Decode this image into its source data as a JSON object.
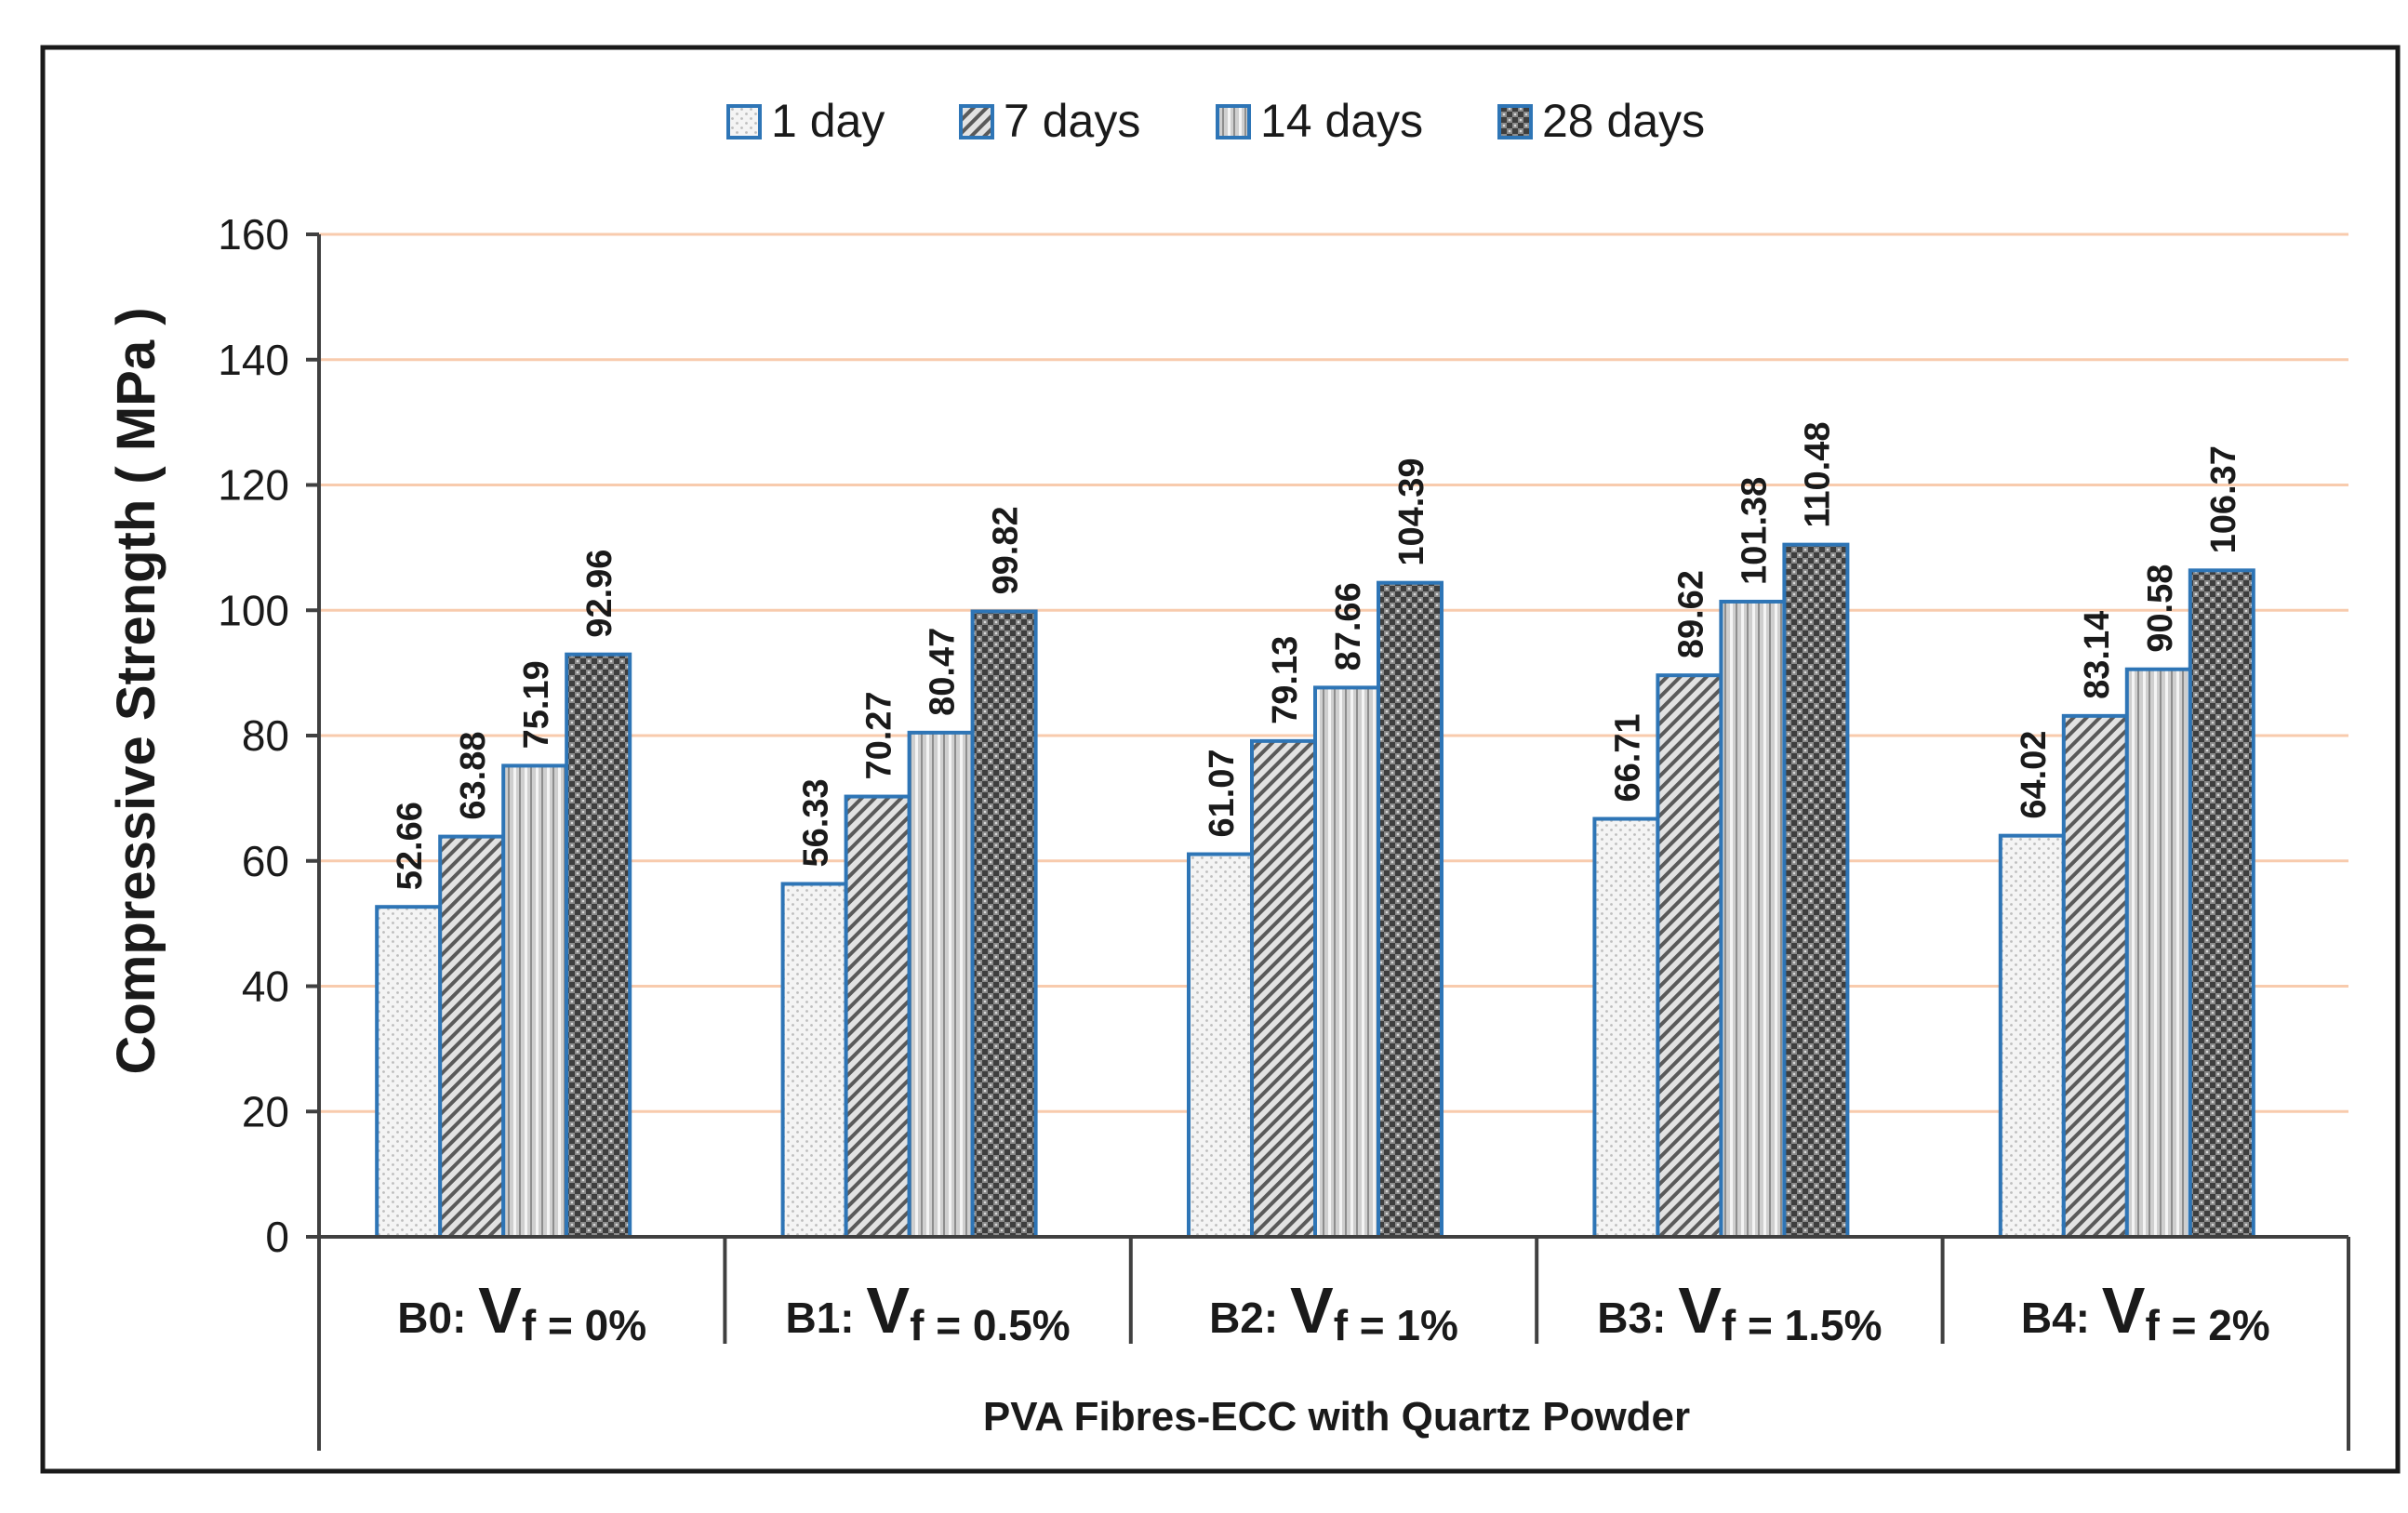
{
  "chart_data": {
    "type": "bar",
    "title": "",
    "xlabel": "PVA Fibres-ECC with Quartz Powder",
    "ylabel": "Compressive Strength ( MPa )",
    "ylim": [
      0,
      160
    ],
    "yticks": [
      "0",
      "20",
      "40",
      "60",
      "80",
      "100",
      "120",
      "140",
      "160"
    ],
    "grid": true,
    "legend_position": "top",
    "categories": [
      {
        "prefix": "B0:",
        "v": "V",
        "sub": "f = 0%"
      },
      {
        "prefix": "B1:",
        "v": "V",
        "sub": "f = 0.5%"
      },
      {
        "prefix": "B2:",
        "v": "V",
        "sub": "f = 1%"
      },
      {
        "prefix": "B3:",
        "v": "V",
        "sub": "f = 1.5%"
      },
      {
        "prefix": "B4:",
        "v": "V",
        "sub": "f = 2%"
      }
    ],
    "series": [
      {
        "name": "1 day",
        "values": [
          52.66,
          56.33,
          61.07,
          66.71,
          64.02
        ],
        "labels": [
          "52.66",
          "56.33",
          "61.07",
          "66.71",
          "64.02"
        ]
      },
      {
        "name": "7 days",
        "values": [
          63.88,
          70.27,
          79.13,
          89.62,
          83.14
        ],
        "labels": [
          "63.88",
          "70.27",
          "79.13",
          "89.62",
          "83.14"
        ]
      },
      {
        "name": "14 days",
        "values": [
          75.19,
          80.47,
          87.66,
          101.38,
          90.58
        ],
        "labels": [
          "75.19",
          "80.47",
          "87.66",
          "101.38",
          "90.58"
        ]
      },
      {
        "name": "28 days",
        "values": [
          92.96,
          99.82,
          104.39,
          110.48,
          106.37
        ],
        "labels": [
          "92.96",
          "99.82",
          "104.39",
          "110.48",
          "106.37"
        ]
      }
    ],
    "colors": {
      "bar_border": "#2E75B6",
      "grid": "#F8CBAD",
      "axis": "#404040",
      "frame": "#1a1a1a",
      "text": "#1a1a1a"
    }
  }
}
